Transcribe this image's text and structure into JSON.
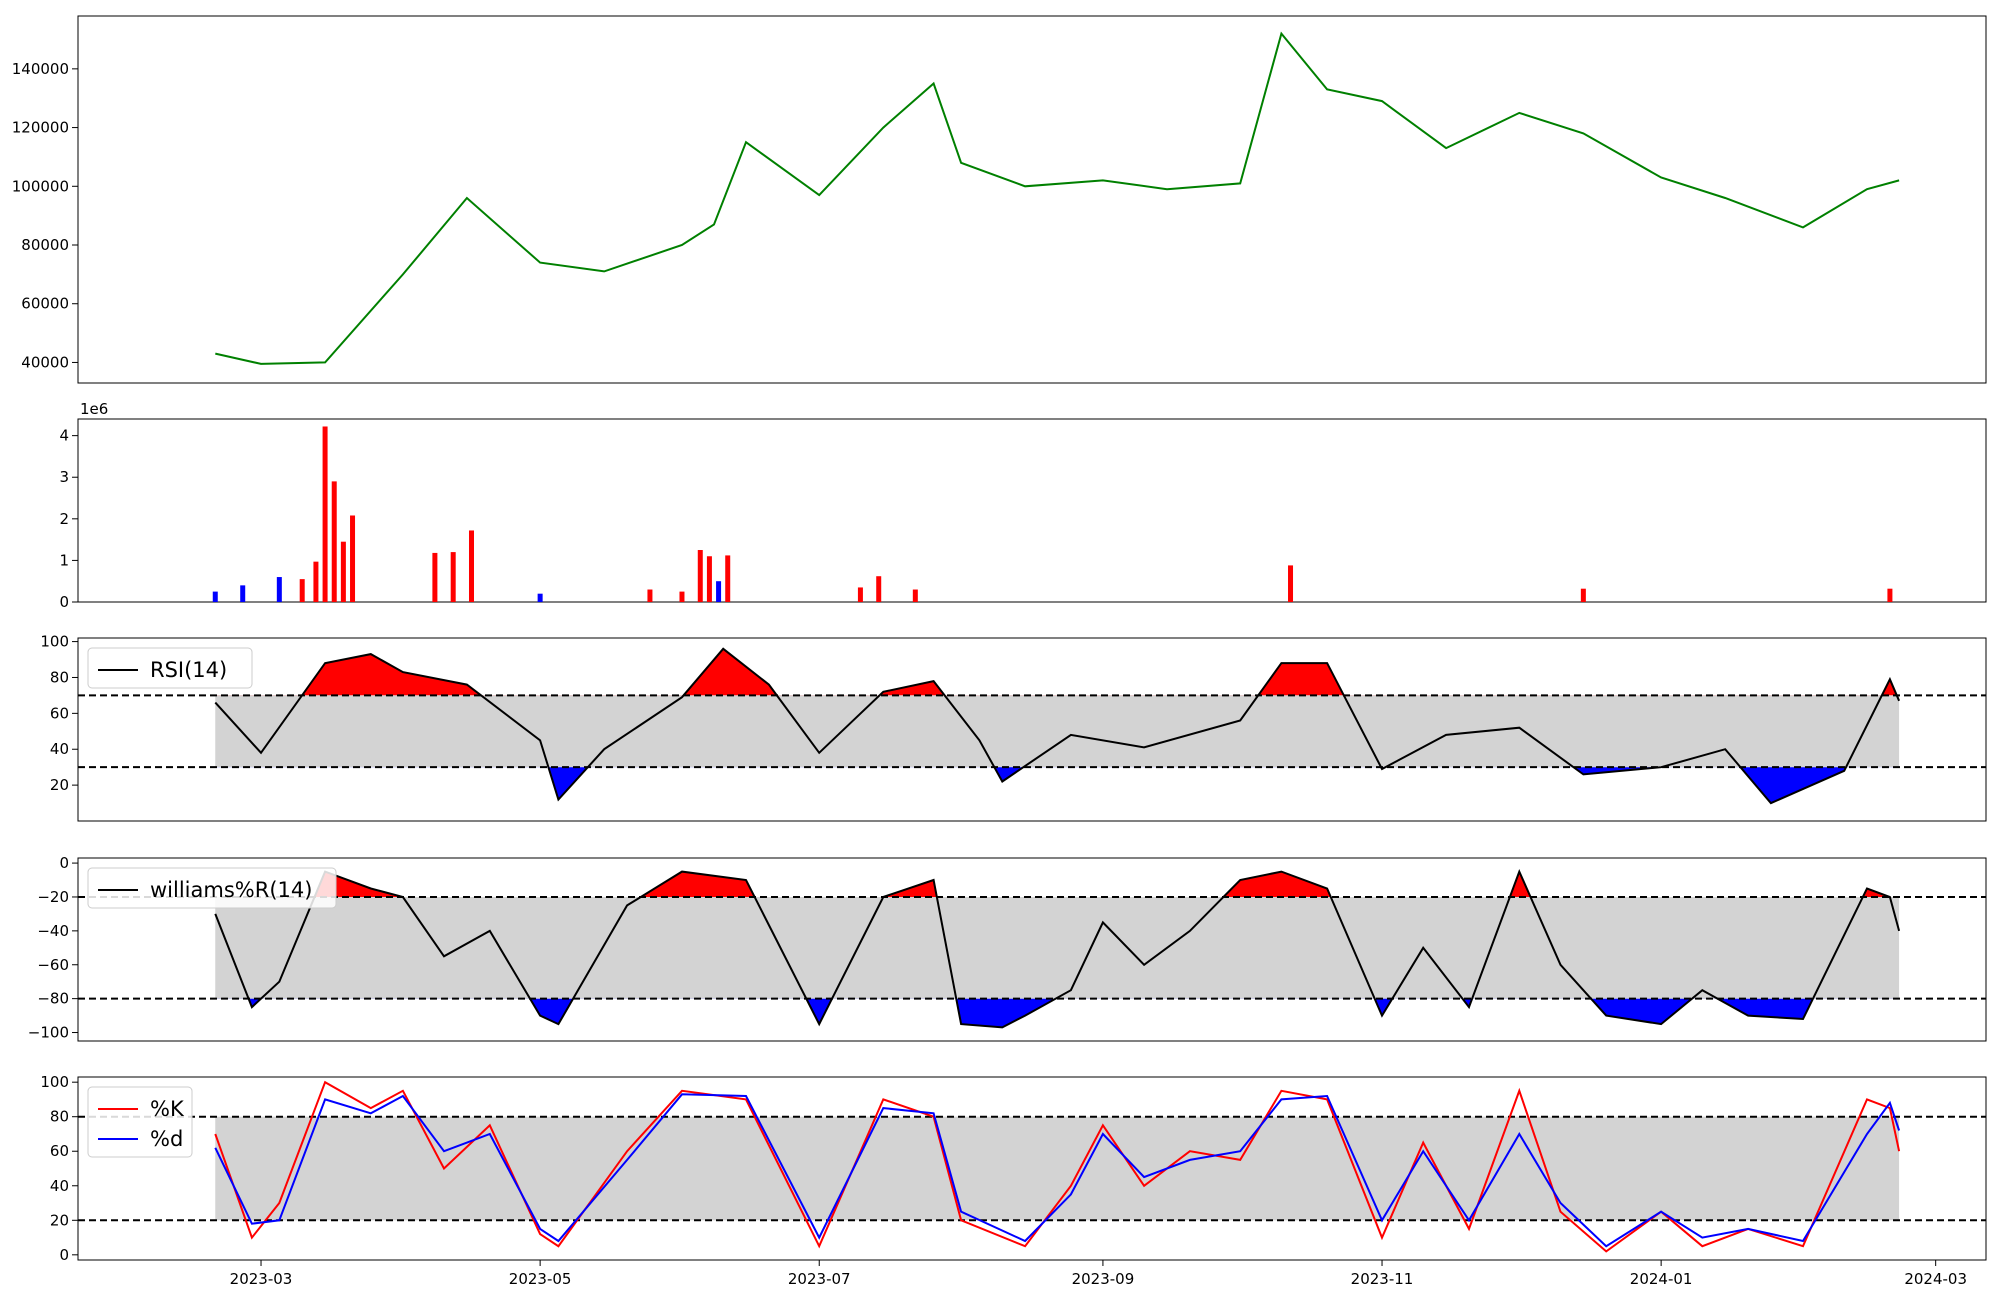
{
  "chart_data": [
    {
      "type": "line",
      "panel": "price",
      "x_dates": [
        "2023-02-19",
        "2023-03-01",
        "2023-03-15",
        "2023-04-01",
        "2023-04-15",
        "2023-05-01",
        "2023-05-15",
        "2023-06-01",
        "2023-06-08",
        "2023-06-15",
        "2023-07-01",
        "2023-07-15",
        "2023-07-26",
        "2023-08-01",
        "2023-08-15",
        "2023-09-01",
        "2023-09-15",
        "2023-10-01",
        "2023-10-10",
        "2023-10-20",
        "2023-11-01",
        "2023-11-15",
        "2023-12-01",
        "2023-12-15",
        "2024-01-01",
        "2024-01-15",
        "2024-02-01",
        "2024-02-15",
        "2024-02-22"
      ],
      "values": [
        43000,
        39500,
        40000,
        70000,
        96000,
        74000,
        71000,
        80000,
        87000,
        115000,
        97000,
        120000,
        135000,
        108000,
        100000,
        102000,
        99000,
        101000,
        152000,
        133000,
        129000,
        113000,
        125000,
        118000,
        103000,
        96000,
        86000,
        99000,
        102000
      ],
      "series": [
        {
          "color": "#008000"
        }
      ],
      "ylim": [
        33000,
        158000
      ],
      "yticks": [
        {
          "v": 40000,
          "label": "40000"
        },
        {
          "v": 60000,
          "label": "60000"
        },
        {
          "v": 80000,
          "label": "80000"
        },
        {
          "v": 100000,
          "label": "100000"
        },
        {
          "v": 120000,
          "label": "120000"
        },
        {
          "v": 140000,
          "label": "140000"
        }
      ],
      "grid": false
    },
    {
      "type": "bar",
      "panel": "volume",
      "offset_text": "1e6",
      "ylim": [
        0,
        4.4
      ],
      "yticks": [
        {
          "v": 0,
          "label": "0"
        },
        {
          "v": 1,
          "label": "1"
        },
        {
          "v": 2,
          "label": "2"
        },
        {
          "v": 3,
          "label": "3"
        },
        {
          "v": 4,
          "label": "4"
        }
      ],
      "bars_x_dates": [
        "2023-02-19",
        "2023-02-25",
        "2023-03-05",
        "2023-03-10",
        "2023-03-13",
        "2023-03-15",
        "2023-03-17",
        "2023-03-19",
        "2023-03-21",
        "2023-04-08",
        "2023-04-12",
        "2023-04-16",
        "2023-05-01",
        "2023-05-25",
        "2023-06-01",
        "2023-06-05",
        "2023-06-07",
        "2023-06-09",
        "2023-06-11",
        "2023-07-10",
        "2023-07-14",
        "2023-07-22",
        "2023-10-12",
        "2023-12-15",
        "2024-02-20"
      ],
      "bars_values": [
        0.25,
        0.4,
        0.6,
        0.55,
        0.97,
        4.22,
        2.9,
        1.45,
        2.08,
        1.18,
        1.2,
        1.72,
        0.2,
        0.3,
        0.25,
        1.25,
        1.1,
        0.5,
        1.12,
        0.35,
        0.62,
        0.3,
        0.88,
        0.32,
        0.32
      ],
      "bar_colors": [
        "blue",
        "blue",
        "blue",
        "red",
        "red",
        "red",
        "red",
        "red",
        "red",
        "red",
        "red",
        "red",
        "blue",
        "red",
        "red",
        "red",
        "red",
        "blue",
        "red",
        "red",
        "red",
        "red",
        "red",
        "red",
        "red"
      ],
      "colors": {
        "up": "#ff0000",
        "down": "#0000ff"
      }
    },
    {
      "type": "line",
      "panel": "rsi",
      "series": [
        {
          "name": "RSI(14)",
          "color": "#000000"
        }
      ],
      "x_dates": [
        "2023-02-19",
        "2023-03-01",
        "2023-03-15",
        "2023-03-25",
        "2023-04-01",
        "2023-04-15",
        "2023-05-01",
        "2023-05-05",
        "2023-05-15",
        "2023-06-01",
        "2023-06-10",
        "2023-06-20",
        "2023-07-01",
        "2023-07-15",
        "2023-07-26",
        "2023-08-05",
        "2023-08-10",
        "2023-08-25",
        "2023-09-10",
        "2023-10-01",
        "2023-10-10",
        "2023-10-20",
        "2023-11-01",
        "2023-11-15",
        "2023-12-01",
        "2023-12-15",
        "2024-01-01",
        "2024-01-15",
        "2024-01-25",
        "2024-02-10",
        "2024-02-20",
        "2024-02-22"
      ],
      "values": [
        66,
        38,
        88,
        93,
        83,
        76,
        45,
        12,
        40,
        69,
        96,
        76,
        38,
        72,
        78,
        45,
        22,
        48,
        41,
        56,
        88,
        88,
        29,
        48,
        52,
        26,
        30,
        40,
        10,
        28,
        79,
        67
      ],
      "upper": 70,
      "lower": 30,
      "ylim": [
        0,
        102
      ],
      "yticks": [
        {
          "v": 20,
          "label": "20"
        },
        {
          "v": 40,
          "label": "40"
        },
        {
          "v": 60,
          "label": "60"
        },
        {
          "v": 80,
          "label": "80"
        },
        {
          "v": 100,
          "label": "100"
        }
      ],
      "legend": "top-left",
      "colors": {
        "overbought": "#ff0000",
        "oversold": "#0000ff",
        "band": "#d3d3d3"
      }
    },
    {
      "type": "line",
      "panel": "williams",
      "series": [
        {
          "name": "williams%R(14)",
          "color": "#000000"
        }
      ],
      "x_dates": [
        "2023-02-19",
        "2023-02-27",
        "2023-03-05",
        "2023-03-15",
        "2023-03-25",
        "2023-04-01",
        "2023-04-10",
        "2023-04-20",
        "2023-05-01",
        "2023-05-05",
        "2023-05-20",
        "2023-06-01",
        "2023-06-15",
        "2023-07-01",
        "2023-07-15",
        "2023-07-26",
        "2023-08-01",
        "2023-08-10",
        "2023-08-15",
        "2023-08-25",
        "2023-09-01",
        "2023-09-10",
        "2023-09-20",
        "2023-10-01",
        "2023-10-10",
        "2023-10-20",
        "2023-11-01",
        "2023-11-10",
        "2023-11-20",
        "2023-12-01",
        "2023-12-10",
        "2023-12-20",
        "2024-01-01",
        "2024-01-10",
        "2024-01-20",
        "2024-02-01",
        "2024-02-15",
        "2024-02-20",
        "2024-02-22"
      ],
      "values": [
        -30,
        -85,
        -70,
        -5,
        -15,
        -20,
        -55,
        -40,
        -90,
        -95,
        -25,
        -5,
        -10,
        -95,
        -20,
        -10,
        -95,
        -97,
        -90,
        -75,
        -35,
        -60,
        -40,
        -10,
        -5,
        -15,
        -90,
        -50,
        -85,
        -5,
        -60,
        -90,
        -95,
        -75,
        -90,
        -92,
        -15,
        -20,
        -40
      ],
      "upper": -20,
      "lower": -80,
      "ylim": [
        -105,
        3
      ],
      "yticks": [
        {
          "v": -100,
          "label": "−100"
        },
        {
          "v": -80,
          "label": "−80"
        },
        {
          "v": -60,
          "label": "−60"
        },
        {
          "v": -40,
          "label": "−40"
        },
        {
          "v": -20,
          "label": "−20"
        },
        {
          "v": 0,
          "label": "0"
        }
      ],
      "legend": "top-left",
      "colors": {
        "overbought": "#ff0000",
        "oversold": "#0000ff",
        "band": "#d3d3d3"
      }
    },
    {
      "type": "line",
      "panel": "stochastic",
      "x_dates": [
        "2023-02-19",
        "2023-02-27",
        "2023-03-05",
        "2023-03-15",
        "2023-03-25",
        "2023-04-01",
        "2023-04-10",
        "2023-04-20",
        "2023-05-01",
        "2023-05-05",
        "2023-05-20",
        "2023-06-01",
        "2023-06-15",
        "2023-07-01",
        "2023-07-15",
        "2023-07-26",
        "2023-08-01",
        "2023-08-15",
        "2023-08-25",
        "2023-09-01",
        "2023-09-10",
        "2023-09-20",
        "2023-10-01",
        "2023-10-10",
        "2023-10-20",
        "2023-11-01",
        "2023-11-10",
        "2023-11-20",
        "2023-12-01",
        "2023-12-10",
        "2023-12-20",
        "2024-01-01",
        "2024-01-10",
        "2024-01-20",
        "2024-02-01",
        "2024-02-15",
        "2024-02-20",
        "2024-02-22"
      ],
      "series": [
        {
          "name": "%K",
          "color": "#ff0000",
          "values": [
            70,
            10,
            30,
            100,
            85,
            95,
            50,
            75,
            12,
            5,
            60,
            95,
            90,
            5,
            90,
            80,
            20,
            5,
            40,
            75,
            40,
            60,
            55,
            95,
            90,
            10,
            65,
            15,
            95,
            25,
            2,
            25,
            5,
            15,
            5,
            90,
            85,
            60
          ]
        },
        {
          "name": "%d",
          "color": "#0000ff",
          "values": [
            62,
            18,
            20,
            90,
            82,
            92,
            60,
            70,
            15,
            8,
            55,
            93,
            92,
            10,
            85,
            82,
            25,
            8,
            35,
            70,
            45,
            55,
            60,
            90,
            92,
            20,
            60,
            20,
            70,
            30,
            5,
            25,
            10,
            15,
            8,
            70,
            88,
            72
          ]
        }
      ],
      "upper": 80,
      "lower": 20,
      "ylim": [
        -3,
        103
      ],
      "yticks": [
        {
          "v": 0,
          "label": "0"
        },
        {
          "v": 20,
          "label": "20"
        },
        {
          "v": 40,
          "label": "40"
        },
        {
          "v": 60,
          "label": "60"
        },
        {
          "v": 80,
          "label": "80"
        },
        {
          "v": 100,
          "label": "100"
        }
      ],
      "xticks": [
        "2023-03",
        "2023-05",
        "2023-07",
        "2023-09",
        "2023-11",
        "2024-01",
        "2024-03"
      ],
      "legend": "top-left",
      "colors": {
        "band": "#d3d3d3"
      }
    }
  ]
}
